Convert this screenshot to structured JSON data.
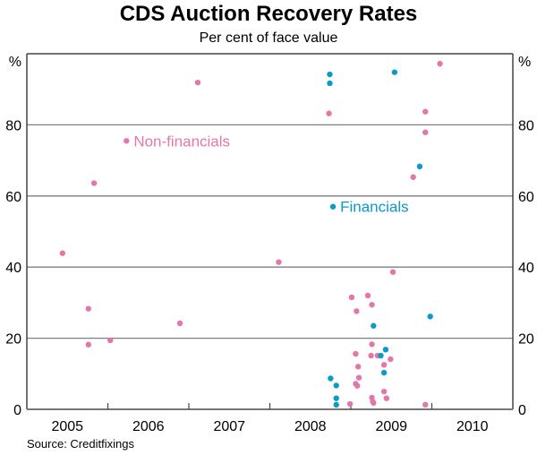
{
  "title": "CDS Auction Recovery Rates",
  "subtitle": "Per cent of face value",
  "source": "Source: Creditfixings",
  "chart_data": {
    "type": "scatter",
    "title": "CDS Auction Recovery Rates",
    "subtitle": "Per cent of face value",
    "ylabel_left": "%",
    "ylabel_right": "%",
    "xlim": [
      2005,
      2011
    ],
    "ylim": [
      0,
      100
    ],
    "yticks": [
      0,
      20,
      40,
      60,
      80
    ],
    "xtick_labels": [
      "2005",
      "2006",
      "2007",
      "2008",
      "2009",
      "2010"
    ],
    "grid": true,
    "series": [
      {
        "name": "Non-financials",
        "color": "#e377a8",
        "points": [
          [
            2005.44,
            43.9
          ],
          [
            2005.76,
            28.3
          ],
          [
            2005.76,
            18.2
          ],
          [
            2005.83,
            63.6
          ],
          [
            2006.03,
            19.4
          ],
          [
            2006.23,
            75.5
          ],
          [
            2006.89,
            24.2
          ],
          [
            2007.11,
            91.9
          ],
          [
            2008.11,
            41.4
          ],
          [
            2008.73,
            83.2
          ],
          [
            2009.52,
            38.6
          ],
          [
            2009.01,
            31.5
          ],
          [
            2009.21,
            32.0
          ],
          [
            2009.26,
            29.4
          ],
          [
            2009.07,
            27.6
          ],
          [
            2009.26,
            18.3
          ],
          [
            2009.06,
            15.6
          ],
          [
            2009.25,
            15.1
          ],
          [
            2009.33,
            15.1
          ],
          [
            2009.49,
            14.1
          ],
          [
            2009.41,
            12.5
          ],
          [
            2009.09,
            12.0
          ],
          [
            2009.1,
            8.9
          ],
          [
            2009.06,
            7.2
          ],
          [
            2009.08,
            6.6
          ],
          [
            2009.41,
            5.0
          ],
          [
            2009.44,
            3.1
          ],
          [
            2009.26,
            3.3
          ],
          [
            2009.27,
            2.2
          ],
          [
            2009.28,
            1.8
          ],
          [
            2008.99,
            1.5
          ],
          [
            2009.92,
            1.3
          ],
          [
            2010.1,
            97.2
          ],
          [
            2009.92,
            83.7
          ],
          [
            2009.92,
            77.9
          ],
          [
            2009.77,
            65.3
          ]
        ]
      },
      {
        "name": "Financials",
        "color": "#0b9ac9",
        "points": [
          [
            2008.74,
            94.2
          ],
          [
            2008.74,
            91.7
          ],
          [
            2009.54,
            94.8
          ],
          [
            2009.85,
            68.3
          ],
          [
            2008.78,
            57.0
          ],
          [
            2009.98,
            26.1
          ],
          [
            2009.28,
            23.5
          ],
          [
            2009.43,
            16.8
          ],
          [
            2009.37,
            15.1
          ],
          [
            2009.41,
            10.3
          ],
          [
            2008.75,
            8.7
          ],
          [
            2008.82,
            6.7
          ],
          [
            2008.82,
            3.1
          ],
          [
            2008.82,
            1.3
          ]
        ]
      }
    ]
  }
}
